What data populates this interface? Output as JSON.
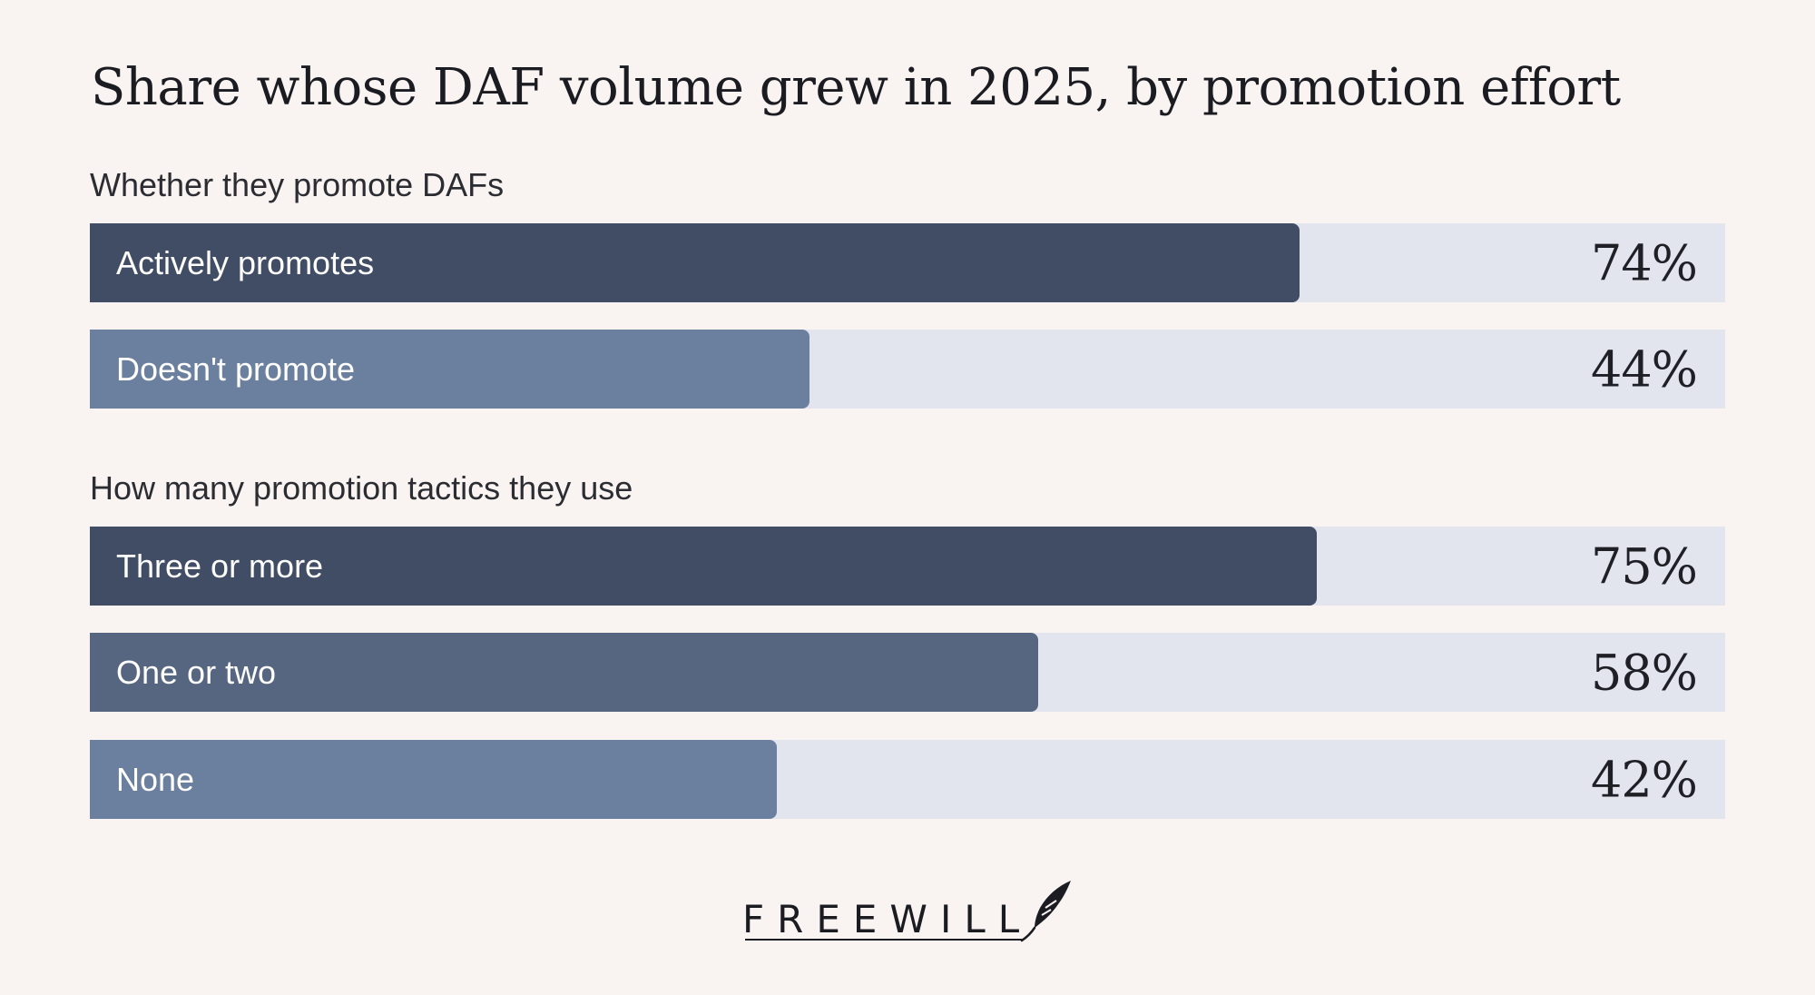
{
  "chart_data": {
    "type": "bar",
    "orientation": "horizontal",
    "title": "Share whose DAF volume grew in 2025, by promotion effort",
    "xlim": [
      0,
      100
    ],
    "unit": "%",
    "groups": [
      {
        "label": "Whether they promote DAFs",
        "categories": [
          "Actively promotes",
          "Doesn't promote"
        ],
        "values": [
          74,
          44
        ],
        "value_labels": [
          "74%",
          "44%"
        ],
        "colors": [
          "#404d65",
          "#6b7f9f"
        ]
      },
      {
        "label": "How many promotion tactics they use",
        "categories": [
          "Three or more",
          "One or two",
          "None"
        ],
        "values": [
          75,
          58,
          42
        ],
        "value_labels": [
          "75%",
          "58%",
          "42%"
        ],
        "colors": [
          "#404d65",
          "#566680",
          "#6b7f9f"
        ]
      }
    ]
  },
  "colors": {
    "background": "#f9f4f1",
    "track": "#e2e4ee"
  },
  "logo": {
    "text": "FREEWILL",
    "icon": "quill-icon"
  }
}
